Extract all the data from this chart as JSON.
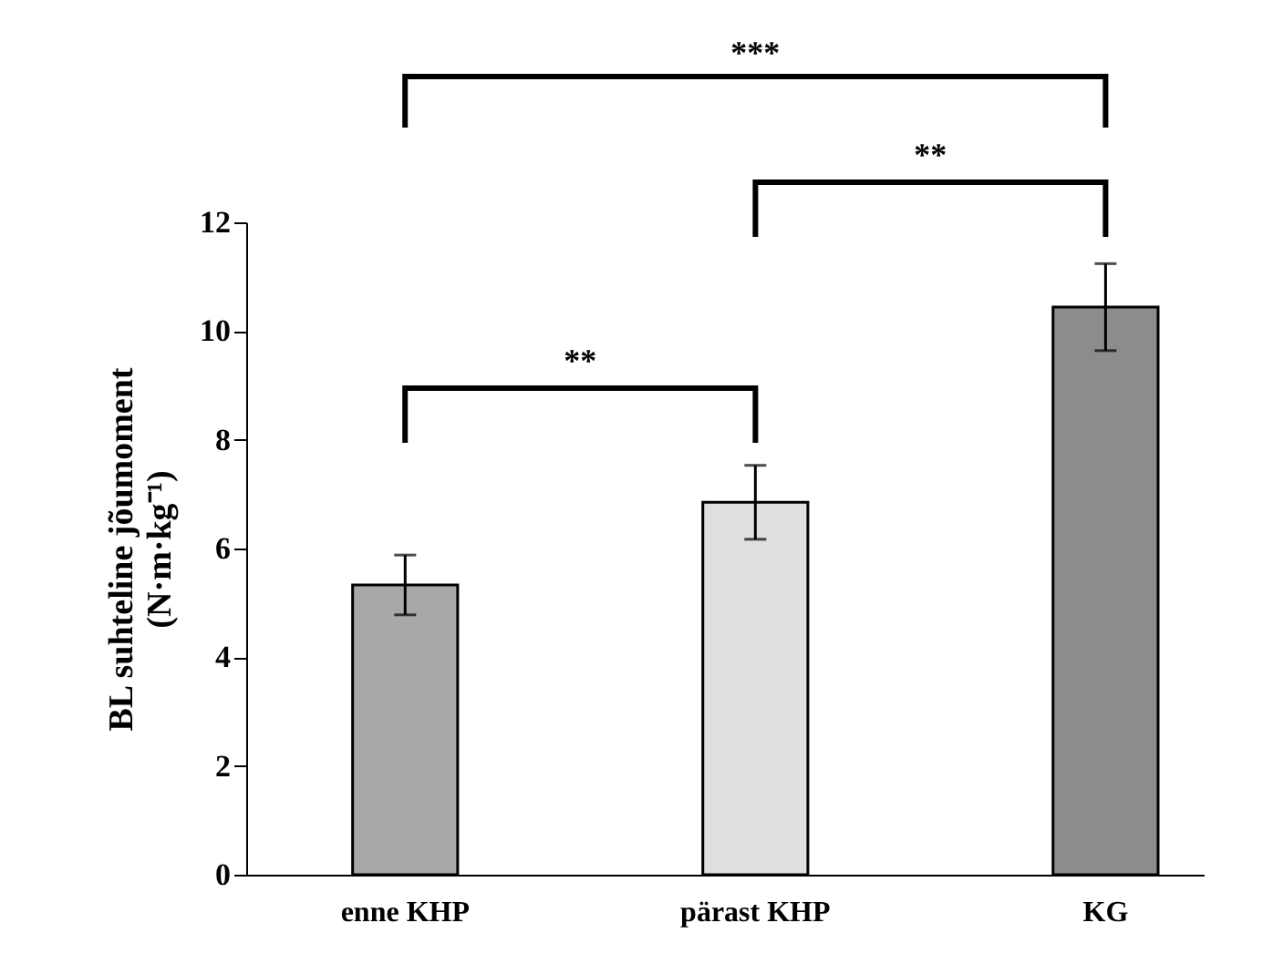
{
  "chart_data": {
    "type": "bar",
    "ylabel": "BL suhteline jõumoment\n(N·m·kg⁻¹)",
    "categories": [
      "enne KHP",
      "pärast KHP",
      "KG"
    ],
    "values": [
      5.33,
      6.85,
      10.44
    ],
    "errors": [
      0.55,
      0.68,
      0.8
    ],
    "colors": [
      "#a8a8a8",
      "#e0e0e0",
      "#8c8c8c"
    ],
    "ylim": [
      0,
      12
    ],
    "yticks": [
      0,
      2,
      4,
      6,
      8,
      10,
      12
    ],
    "grid": false,
    "annotations": [
      "***",
      "**",
      "**"
    ]
  }
}
